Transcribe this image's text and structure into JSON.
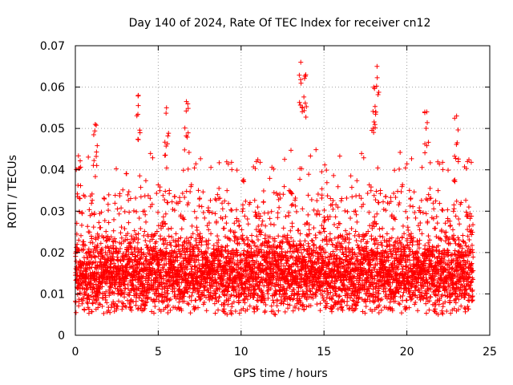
{
  "chart_data": {
    "type": "scatter",
    "title": "Day 140 of 2024, Rate Of TEC Index for receiver cn12",
    "xlabel": "GPS time / hours",
    "ylabel": "ROTI / TECUs",
    "xlim": [
      0,
      25
    ],
    "ylim": [
      0,
      0.07
    ],
    "xticks": [
      0,
      5,
      10,
      15,
      20,
      25
    ],
    "yticks": [
      0,
      0.01,
      0.02,
      0.03,
      0.04,
      0.05,
      0.06,
      0.07
    ],
    "x_tick_labels": [
      "0",
      "5",
      "10",
      "15",
      "20",
      "25"
    ],
    "y_tick_labels": [
      "0",
      "0.01",
      "0.02",
      "0.03",
      "0.04",
      "0.05",
      "0.06",
      "0.07"
    ],
    "grid": true,
    "marker": "+",
    "color": "#ff0000",
    "series": [
      {
        "name": "ROTI",
        "x_range": [
          0,
          24
        ],
        "typical_range": [
          0.005,
          0.025
        ],
        "notable_points": [
          {
            "x": 1.2,
            "y": 0.051
          },
          {
            "x": 3.8,
            "y": 0.058
          },
          {
            "x": 5.5,
            "y": 0.055
          },
          {
            "x": 6.7,
            "y": 0.0565
          },
          {
            "x": 13.6,
            "y": 0.066
          },
          {
            "x": 13.9,
            "y": 0.063
          },
          {
            "x": 18.2,
            "y": 0.065
          },
          {
            "x": 18.0,
            "y": 0.06
          },
          {
            "x": 21.2,
            "y": 0.054
          },
          {
            "x": 23.0,
            "y": 0.053
          }
        ]
      }
    ]
  }
}
